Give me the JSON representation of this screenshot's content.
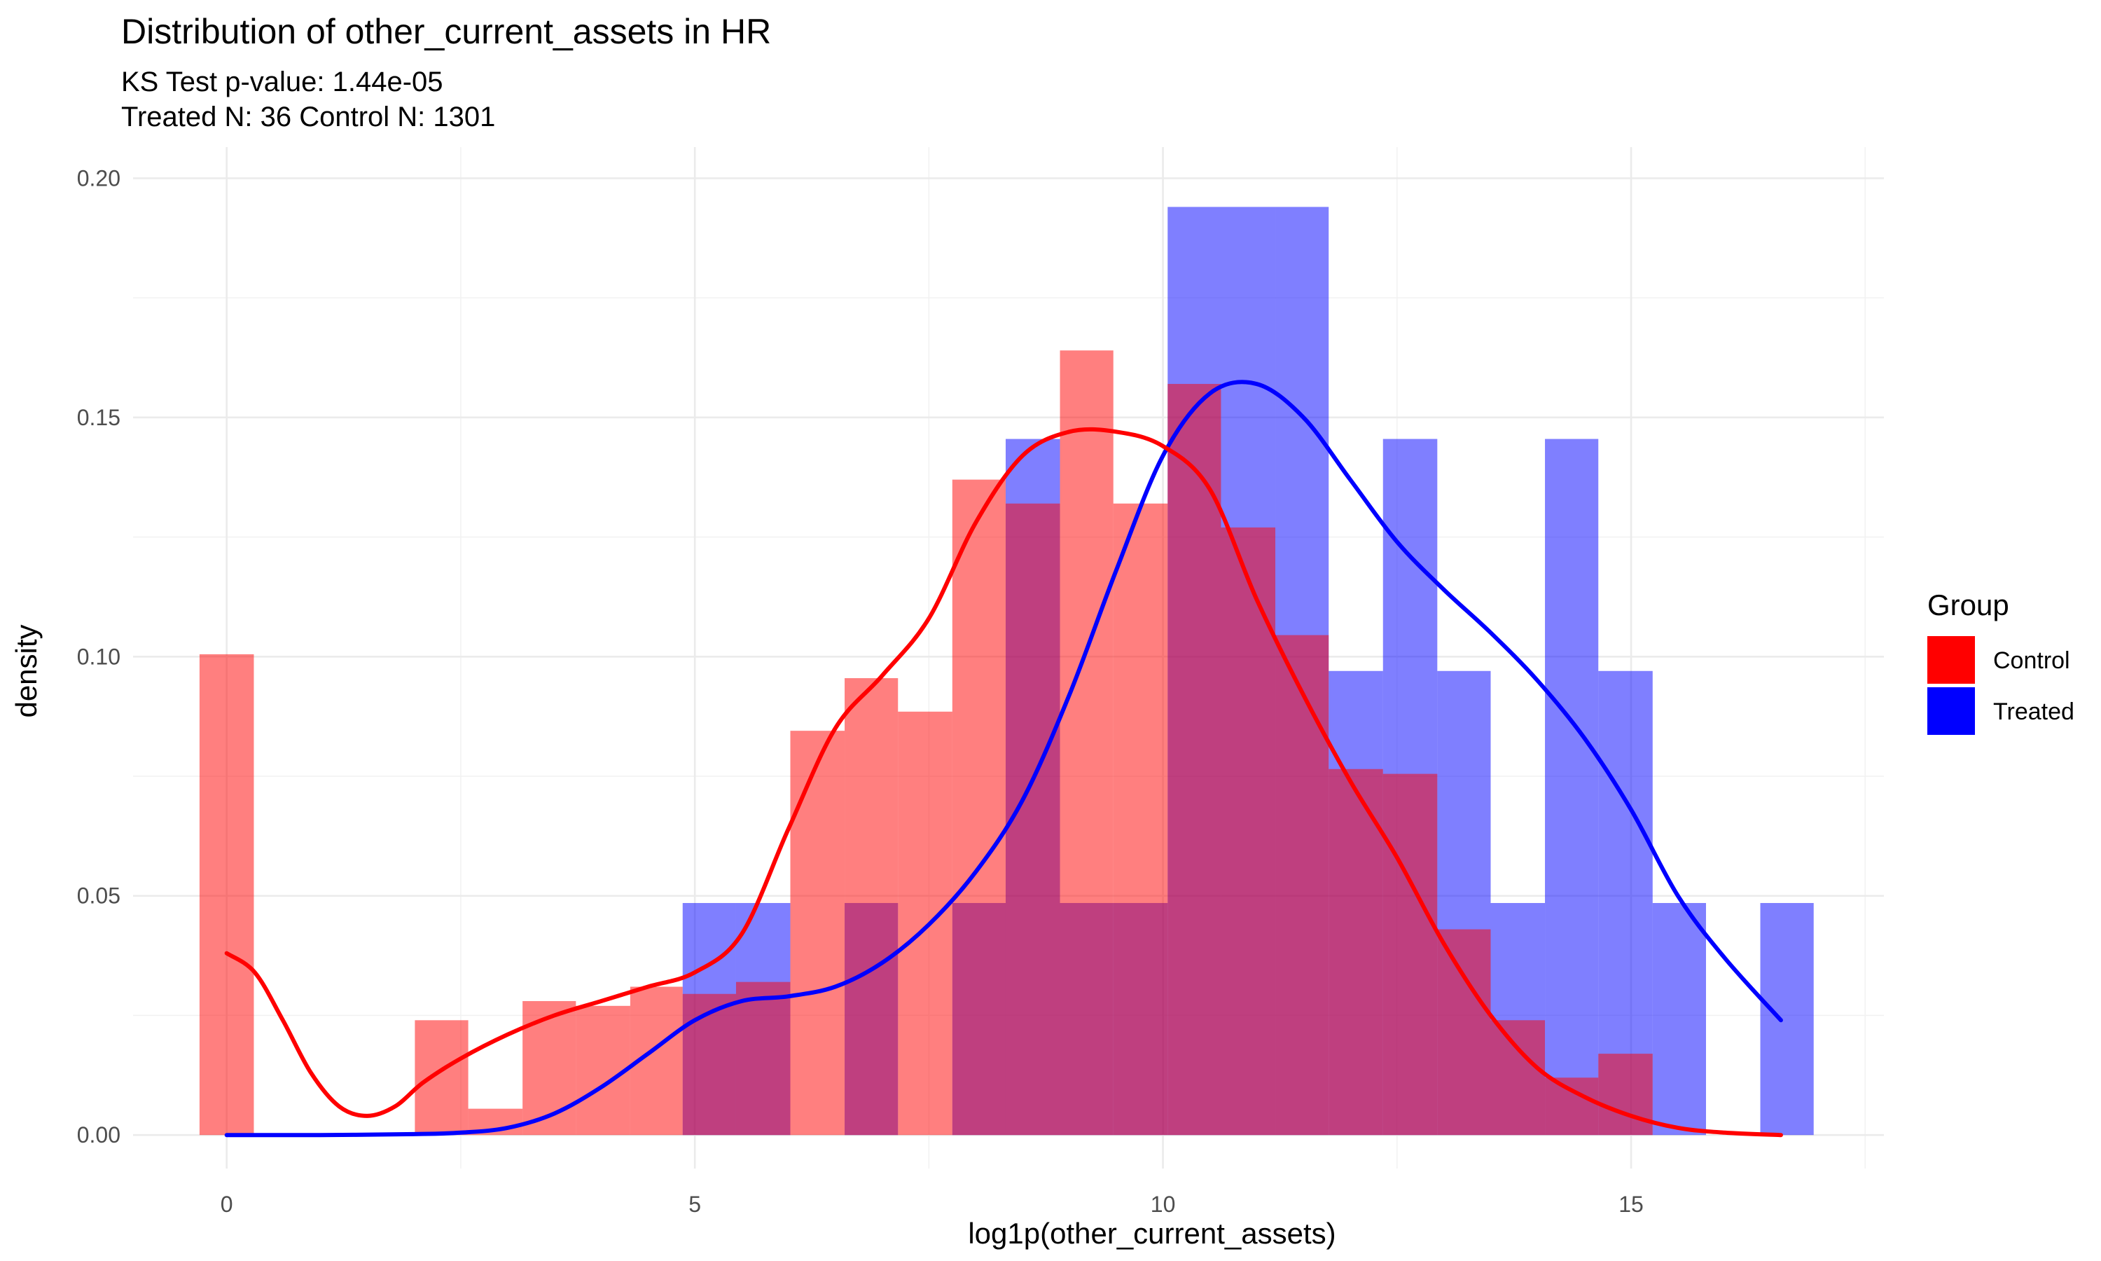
{
  "chart_data": {
    "type": "histogram",
    "title": "Distribution of other_current_assets in HR",
    "subtitle_lines": [
      "KS Test p-value: 1.44e-05",
      "Treated N: 36 Control N: 1301"
    ],
    "xlabel": "log1p(other_current_assets)",
    "ylabel": "density",
    "xlim": [
      -1,
      17.7
    ],
    "ylim": [
      -0.007,
      0.2065
    ],
    "x_ticks": [
      0,
      5,
      10,
      15
    ],
    "x_tick_labels": [
      "0",
      "5",
      "10",
      "15"
    ],
    "y_ticks": [
      0.0,
      0.05,
      0.1,
      0.15,
      0.2
    ],
    "y_tick_labels": [
      "0.00",
      "0.05",
      "0.10",
      "0.15",
      "0.20"
    ],
    "grid": true,
    "legend": {
      "title": "Group",
      "position": "right"
    },
    "series": [
      {
        "name": "Treated",
        "color": "#0000ff",
        "fill_opacity": 0.5,
        "bins": [
          {
            "x0": 4.87,
            "x1": 5.44,
            "value": 0.0485
          },
          {
            "x0": 5.44,
            "x1": 6.02,
            "value": 0.0485
          },
          {
            "x0": 6.6,
            "x1": 7.17,
            "value": 0.0485
          },
          {
            "x0": 7.75,
            "x1": 8.32,
            "value": 0.0485
          },
          {
            "x0": 8.32,
            "x1": 8.9,
            "value": 0.1455
          },
          {
            "x0": 8.9,
            "x1": 9.47,
            "value": 0.0485
          },
          {
            "x0": 9.47,
            "x1": 10.05,
            "value": 0.0485
          },
          {
            "x0": 10.05,
            "x1": 10.62,
            "value": 0.194
          },
          {
            "x0": 10.62,
            "x1": 11.2,
            "value": 0.194
          },
          {
            "x0": 11.2,
            "x1": 11.77,
            "value": 0.194
          },
          {
            "x0": 11.77,
            "x1": 12.35,
            "value": 0.097
          },
          {
            "x0": 12.35,
            "x1": 12.93,
            "value": 0.1455
          },
          {
            "x0": 12.93,
            "x1": 13.5,
            "value": 0.097
          },
          {
            "x0": 13.5,
            "x1": 14.08,
            "value": 0.0485
          },
          {
            "x0": 14.08,
            "x1": 14.65,
            "value": 0.1455
          },
          {
            "x0": 14.65,
            "x1": 15.23,
            "value": 0.097
          },
          {
            "x0": 15.23,
            "x1": 15.8,
            "value": 0.0485
          },
          {
            "x0": 16.38,
            "x1": 16.95,
            "value": 0.0485
          }
        ],
        "density_curve": {
          "x": [
            0,
            1,
            2,
            2.5,
            3,
            3.5,
            4,
            4.5,
            5,
            5.5,
            6,
            6.5,
            7,
            7.5,
            8,
            8.5,
            9,
            9.5,
            10,
            10.5,
            11,
            11.5,
            12,
            12.5,
            13,
            13.5,
            14,
            14.5,
            15,
            15.5,
            16,
            16.6
          ],
          "y": [
            0.0,
            0.0,
            0.0002,
            0.0005,
            0.0015,
            0.0045,
            0.01,
            0.017,
            0.024,
            0.028,
            0.029,
            0.031,
            0.036,
            0.044,
            0.055,
            0.07,
            0.092,
            0.118,
            0.142,
            0.155,
            0.157,
            0.15,
            0.137,
            0.124,
            0.114,
            0.105,
            0.095,
            0.083,
            0.068,
            0.05,
            0.037,
            0.024
          ]
        }
      },
      {
        "name": "Control",
        "color": "#ff0000",
        "fill_opacity": 0.5,
        "bins": [
          {
            "x0": -0.29,
            "x1": 0.29,
            "value": 0.1005
          },
          {
            "x0": 2.01,
            "x1": 2.58,
            "value": 0.024
          },
          {
            "x0": 2.58,
            "x1": 3.16,
            "value": 0.0055
          },
          {
            "x0": 3.16,
            "x1": 3.73,
            "value": 0.028
          },
          {
            "x0": 3.73,
            "x1": 4.31,
            "value": 0.027
          },
          {
            "x0": 4.31,
            "x1": 4.87,
            "value": 0.031
          },
          {
            "x0": 4.87,
            "x1": 5.44,
            "value": 0.0295
          },
          {
            "x0": 5.44,
            "x1": 6.02,
            "value": 0.032
          },
          {
            "x0": 6.02,
            "x1": 6.6,
            "value": 0.0845
          },
          {
            "x0": 6.6,
            "x1": 7.17,
            "value": 0.0955
          },
          {
            "x0": 7.17,
            "x1": 7.75,
            "value": 0.0885
          },
          {
            "x0": 7.75,
            "x1": 8.32,
            "value": 0.137
          },
          {
            "x0": 8.32,
            "x1": 8.9,
            "value": 0.132
          },
          {
            "x0": 8.9,
            "x1": 9.47,
            "value": 0.164
          },
          {
            "x0": 9.47,
            "x1": 10.05,
            "value": 0.132
          },
          {
            "x0": 10.05,
            "x1": 10.62,
            "value": 0.157
          },
          {
            "x0": 10.62,
            "x1": 11.2,
            "value": 0.127
          },
          {
            "x0": 11.2,
            "x1": 11.77,
            "value": 0.1045
          },
          {
            "x0": 11.77,
            "x1": 12.35,
            "value": 0.0765
          },
          {
            "x0": 12.35,
            "x1": 12.93,
            "value": 0.0755
          },
          {
            "x0": 12.93,
            "x1": 13.5,
            "value": 0.043
          },
          {
            "x0": 13.5,
            "x1": 14.08,
            "value": 0.024
          },
          {
            "x0": 14.08,
            "x1": 14.65,
            "value": 0.012
          },
          {
            "x0": 14.65,
            "x1": 15.23,
            "value": 0.017
          }
        ],
        "density_curve": {
          "x": [
            0,
            0.3,
            0.6,
            0.9,
            1.2,
            1.5,
            1.8,
            2.1,
            2.5,
            3.0,
            3.5,
            4.0,
            4.5,
            5.0,
            5.5,
            6.0,
            6.5,
            7.0,
            7.5,
            8.0,
            8.5,
            9.0,
            9.5,
            10.0,
            10.5,
            11.0,
            11.5,
            12.0,
            12.5,
            13.0,
            13.5,
            14.0,
            14.5,
            15.0,
            15.5,
            16.0,
            16.6
          ],
          "y": [
            0.038,
            0.034,
            0.024,
            0.013,
            0.006,
            0.004,
            0.006,
            0.011,
            0.016,
            0.021,
            0.025,
            0.028,
            0.031,
            0.034,
            0.042,
            0.064,
            0.085,
            0.096,
            0.108,
            0.128,
            0.142,
            0.147,
            0.147,
            0.144,
            0.135,
            0.112,
            0.092,
            0.074,
            0.058,
            0.04,
            0.025,
            0.014,
            0.008,
            0.004,
            0.0015,
            0.0005,
            0.0
          ]
        }
      }
    ]
  }
}
